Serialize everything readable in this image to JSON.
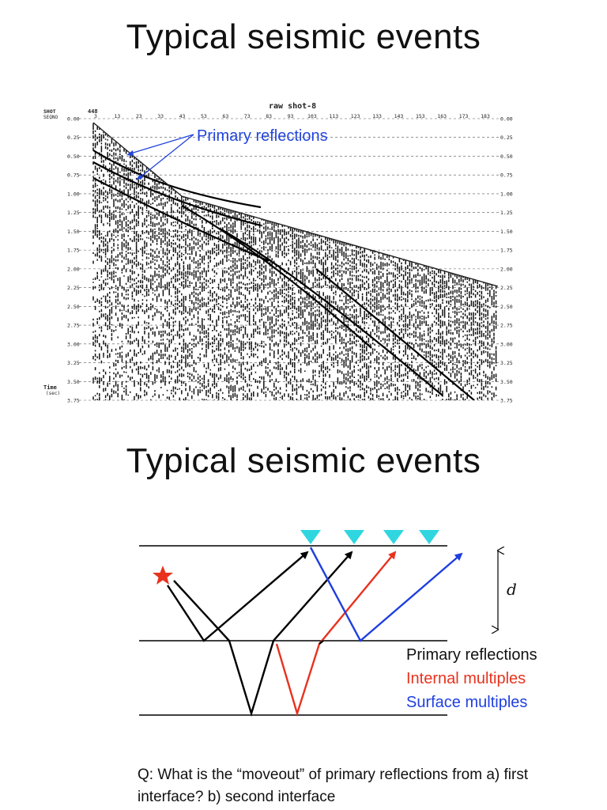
{
  "slide1": {
    "title": "Typical seismic events",
    "gather": {
      "header_title": "raw shot-8",
      "row_label_1": "SHOT",
      "row_label_2": "SEQNO",
      "shot_value": "448",
      "trace_ticks": [
        "3",
        "13",
        "23",
        "33",
        "43",
        "53",
        "63",
        "73",
        "83",
        "93",
        "103",
        "113",
        "123",
        "133",
        "143",
        "153",
        "163",
        "173",
        "183"
      ],
      "time_ticks": [
        "0.00",
        "0.25",
        "0.50",
        "0.75",
        "1.00",
        "1.25",
        "1.50",
        "1.75",
        "2.00",
        "2.25",
        "2.50",
        "2.75",
        "3.00",
        "3.25",
        "3.50",
        "3.75"
      ],
      "axis_label_1": "Time",
      "axis_label_2": "(sec)",
      "annotation": "Primary reflections",
      "annotation_color": "#2244dd"
    }
  },
  "slide2": {
    "title": "Typical seismic events",
    "diagram": {
      "depth_label": "d",
      "colors": {
        "primary": "#000000",
        "internal": "#e8321e",
        "surface": "#1f3fe0",
        "receiver": "#2fd6e0",
        "source": "#e8321e"
      },
      "legend": [
        "Primary reflections",
        "Internal multiples",
        "Surface multiples"
      ],
      "source_icon": "star-icon",
      "receiver_icon": "triangle-down-icon"
    },
    "question": "Q: What is the “moveout” of primary reflections from a) first interface? b) second interface"
  }
}
